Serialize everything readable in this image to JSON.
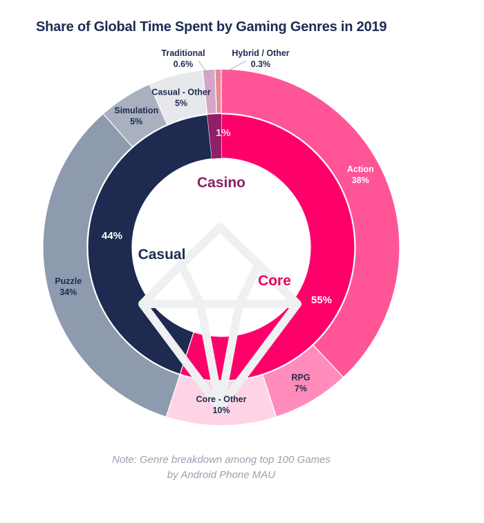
{
  "chart_data": {
    "type": "pie",
    "subtype": "nested-donut",
    "title": "Share of Global Time Spent by Gaming Genres in 2019",
    "note_lines": [
      "Note: Genre breakdown among top 100 Games",
      "by Android Phone MAU"
    ],
    "start": "12 o'clock, clockwise",
    "inner": [
      {
        "name": "Core",
        "value": 55,
        "value_label": "55%",
        "color": "#ff006b",
        "name_color": "#e8005f",
        "pct_color": "#ffffff"
      },
      {
        "name": "Casual",
        "value": 44,
        "value_label": "44%",
        "color": "#1e2a50",
        "name_color": "#1e2a50",
        "pct_color": "#ffffff"
      },
      {
        "name": "Casino",
        "value": 1,
        "value_label": "1%",
        "color": "#8e1f68",
        "name_color": "#8a2166",
        "pct_color": "#f4d6e8"
      }
    ],
    "outer": [
      {
        "name": "Action",
        "value": 38,
        "value_label": "38%",
        "parent": "Core",
        "color": "#ff5597",
        "text_color": "#ffffff"
      },
      {
        "name": "RPG",
        "value": 7,
        "value_label": "7%",
        "parent": "Core",
        "color": "#ff8cbb",
        "text_color": "#1e2a50"
      },
      {
        "name": "Core - Other",
        "value": 10,
        "value_label": "10%",
        "parent": "Core",
        "color": "#ffd3e6",
        "text_color": "#1e2a50"
      },
      {
        "name": "Puzzle",
        "value": 34,
        "value_label": "34%",
        "parent": "Casual",
        "color": "#8e9aad",
        "text_color": "#1e2a50"
      },
      {
        "name": "Simulation",
        "value": 5,
        "value_label": "5%",
        "parent": "Casual",
        "color": "#a9b1bf",
        "text_color": "#1e2a50"
      },
      {
        "name": "Casual - Other",
        "value": 5,
        "value_label": "5%",
        "parent": "Casual",
        "color": "#e6e8ec",
        "text_color": "#1e2a50"
      },
      {
        "name": "Traditional",
        "value": 0.6,
        "value_label": "0.6%",
        "parent": "Casino",
        "color": "#d3a7c9",
        "text_color": "#1e2a50"
      },
      {
        "name": "Hybrid / Other",
        "value": 0.3,
        "value_label": "0.3%",
        "parent": "Casino",
        "color": "#e88a98",
        "text_color": "#1e2a50"
      }
    ],
    "background_icon": "diamond-gem"
  }
}
